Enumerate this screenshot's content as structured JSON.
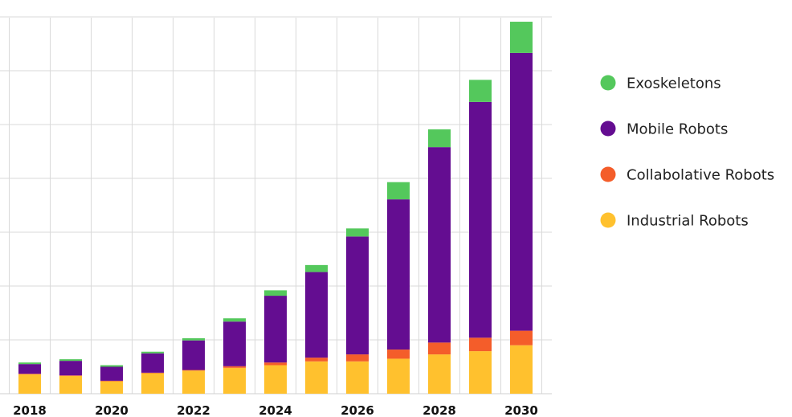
{
  "chart_data": {
    "type": "bar",
    "stacked": true,
    "title": "",
    "xlabel": "",
    "ylabel": "",
    "grid": true,
    "legend_position": "right",
    "ylim": [
      0,
      70
    ],
    "y_gridline_step": 10,
    "categories": [
      "2018",
      "2019",
      "2020",
      "2021",
      "2022",
      "2023",
      "2024",
      "2025",
      "2026",
      "2027",
      "2028",
      "2029",
      "2030"
    ],
    "x_tick_labels": [
      "2018",
      "",
      "2020",
      "",
      "2022",
      "",
      "2024",
      "",
      "2026",
      "",
      "2028",
      "",
      "2030"
    ],
    "series": [
      {
        "name": "Industrial Robots",
        "color": "#FFC12E",
        "values": [
          3.6,
          3.3,
          2.3,
          3.8,
          4.3,
          4.8,
          5.3,
          6.0,
          6.0,
          6.5,
          7.3,
          7.9,
          9.0
        ]
      },
      {
        "name": "Collabolative Robots",
        "color": "#F45D2A",
        "values": [
          0.1,
          0.1,
          0.1,
          0.1,
          0.1,
          0.3,
          0.5,
          0.7,
          1.3,
          1.7,
          2.2,
          2.5,
          2.7
        ]
      },
      {
        "name": "Mobile Robots",
        "color": "#640D91",
        "values": [
          1.8,
          2.7,
          2.6,
          3.6,
          5.5,
          8.3,
          12.4,
          15.9,
          21.9,
          27.9,
          36.3,
          43.8,
          51.6
        ]
      },
      {
        "name": "Exoskeletons",
        "color": "#54C85C",
        "values": [
          0.3,
          0.3,
          0.3,
          0.3,
          0.4,
          0.6,
          1.0,
          1.3,
          1.5,
          3.2,
          3.3,
          4.1,
          5.8
        ]
      }
    ],
    "legend_order": [
      "Exoskeletons",
      "Mobile Robots",
      "Collabolative Robots",
      "Industrial Robots"
    ]
  }
}
